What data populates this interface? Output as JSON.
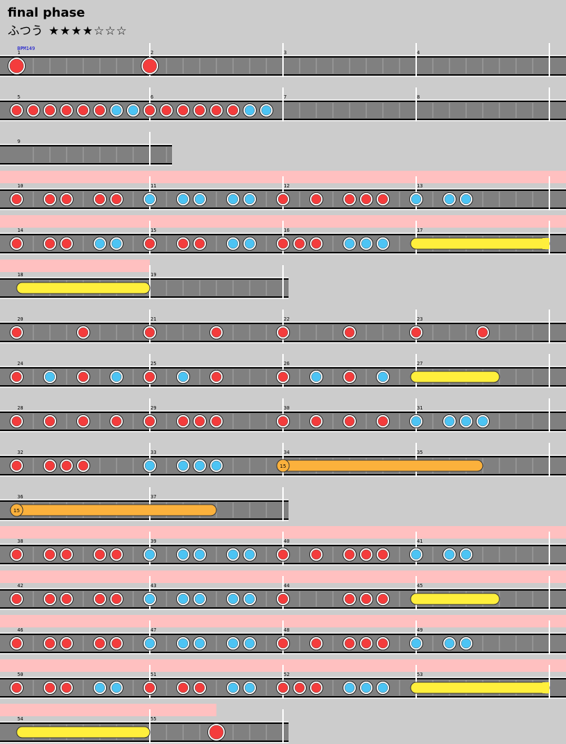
{
  "song": {
    "title": "final phase",
    "difficulty": "ふつう",
    "stars_display": "★★★★☆☆☆",
    "stars_filled": 4,
    "stars_total": 7,
    "bpm_label": "BPM149"
  },
  "colors": {
    "background": "#cccccc",
    "lane": "#808080",
    "gogo_band": "#ffc0c0",
    "don": "#f43c3c",
    "ka": "#4cc4f4",
    "roll": "#ffef3c",
    "balloon": "#fbb13c"
  },
  "rows": [
    {
      "measures": [
        1,
        2,
        3,
        4
      ],
      "gogo": false,
      "notes": [
        {
          "t": "DON",
          "b": 0
        },
        {
          "t": "DON",
          "b": 8
        }
      ]
    },
    {
      "measures": [
        5,
        6,
        7,
        8
      ],
      "gogo": false,
      "notes": [
        {
          "t": "d",
          "b": 0
        },
        {
          "t": "d",
          "b": 1
        },
        {
          "t": "d",
          "b": 2
        },
        {
          "t": "d",
          "b": 3
        },
        {
          "t": "d",
          "b": 4
        },
        {
          "t": "d",
          "b": 5
        },
        {
          "t": "k",
          "b": 6
        },
        {
          "t": "k",
          "b": 7
        },
        {
          "t": "d",
          "b": 8
        },
        {
          "t": "d",
          "b": 9
        },
        {
          "t": "d",
          "b": 10
        },
        {
          "t": "d",
          "b": 11
        },
        {
          "t": "d",
          "b": 12
        },
        {
          "t": "d",
          "b": 13
        },
        {
          "t": "k",
          "b": 14
        },
        {
          "t": "k",
          "b": 15
        }
      ]
    },
    {
      "measures": [
        9
      ],
      "gogo": false,
      "len": 10,
      "notes": []
    },
    {
      "measures": [
        10,
        11,
        12,
        13
      ],
      "gogo": true,
      "notes": [
        {
          "t": "d",
          "b": 0
        },
        {
          "t": "d",
          "b": 2
        },
        {
          "t": "d",
          "b": 3
        },
        {
          "t": "d",
          "b": 5
        },
        {
          "t": "d",
          "b": 6
        },
        {
          "t": "k",
          "b": 8
        },
        {
          "t": "k",
          "b": 10
        },
        {
          "t": "k",
          "b": 11
        },
        {
          "t": "k",
          "b": 13
        },
        {
          "t": "k",
          "b": 14
        },
        {
          "t": "d",
          "b": 16
        },
        {
          "t": "d",
          "b": 18
        },
        {
          "t": "d",
          "b": 20
        },
        {
          "t": "d",
          "b": 21
        },
        {
          "t": "d",
          "b": 22
        },
        {
          "t": "k",
          "b": 24
        },
        {
          "t": "k",
          "b": 26
        },
        {
          "t": "k",
          "b": 27
        }
      ]
    },
    {
      "measures": [
        14,
        15,
        16,
        17
      ],
      "gogo": true,
      "notes": [
        {
          "t": "d",
          "b": 0
        },
        {
          "t": "d",
          "b": 2
        },
        {
          "t": "d",
          "b": 3
        },
        {
          "t": "k",
          "b": 5
        },
        {
          "t": "k",
          "b": 6
        },
        {
          "t": "d",
          "b": 8
        },
        {
          "t": "d",
          "b": 10
        },
        {
          "t": "d",
          "b": 11
        },
        {
          "t": "k",
          "b": 13
        },
        {
          "t": "k",
          "b": 14
        },
        {
          "t": "d",
          "b": 16
        },
        {
          "t": "d",
          "b": 17
        },
        {
          "t": "d",
          "b": 18
        },
        {
          "t": "k",
          "b": 20
        },
        {
          "t": "k",
          "b": 21
        },
        {
          "t": "k",
          "b": 22
        }
      ],
      "rolls": [
        {
          "s": 24,
          "e": 32,
          "open": true
        }
      ]
    },
    {
      "measures": [
        18,
        19
      ],
      "gogo": true,
      "gogo_end": 8,
      "len": 17,
      "notes": [],
      "rolls": [
        {
          "s": 0,
          "e": 8,
          "cont": true
        }
      ]
    },
    {
      "measures": [
        20,
        21,
        22,
        23
      ],
      "gogo": false,
      "notes": [
        {
          "t": "d",
          "b": 0
        },
        {
          "t": "d",
          "b": 4
        },
        {
          "t": "d",
          "b": 8
        },
        {
          "t": "d",
          "b": 12
        },
        {
          "t": "d",
          "b": 16
        },
        {
          "t": "d",
          "b": 20
        },
        {
          "t": "d",
          "b": 24
        },
        {
          "t": "d",
          "b": 28
        }
      ]
    },
    {
      "measures": [
        24,
        25,
        26,
        27
      ],
      "gogo": false,
      "notes": [
        {
          "t": "d",
          "b": 0
        },
        {
          "t": "k",
          "b": 2
        },
        {
          "t": "d",
          "b": 4
        },
        {
          "t": "k",
          "b": 6
        },
        {
          "t": "d",
          "b": 8
        },
        {
          "t": "k",
          "b": 10
        },
        {
          "t": "d",
          "b": 12
        },
        {
          "t": "d",
          "b": 16
        },
        {
          "t": "k",
          "b": 18
        },
        {
          "t": "d",
          "b": 20
        },
        {
          "t": "k",
          "b": 22
        }
      ],
      "rolls": [
        {
          "s": 24,
          "e": 29
        }
      ]
    },
    {
      "measures": [
        28,
        29,
        30,
        31
      ],
      "gogo": false,
      "notes": [
        {
          "t": "d",
          "b": 0
        },
        {
          "t": "d",
          "b": 2
        },
        {
          "t": "d",
          "b": 4
        },
        {
          "t": "d",
          "b": 6
        },
        {
          "t": "d",
          "b": 8
        },
        {
          "t": "d",
          "b": 10
        },
        {
          "t": "d",
          "b": 11
        },
        {
          "t": "d",
          "b": 12
        },
        {
          "t": "d",
          "b": 16
        },
        {
          "t": "d",
          "b": 18
        },
        {
          "t": "d",
          "b": 20
        },
        {
          "t": "d",
          "b": 22
        },
        {
          "t": "k",
          "b": 24
        },
        {
          "t": "k",
          "b": 26
        },
        {
          "t": "k",
          "b": 27
        },
        {
          "t": "k",
          "b": 28
        }
      ]
    },
    {
      "measures": [
        32,
        33,
        34,
        35
      ],
      "gogo": false,
      "notes": [
        {
          "t": "d",
          "b": 0
        },
        {
          "t": "d",
          "b": 2
        },
        {
          "t": "d",
          "b": 3
        },
        {
          "t": "d",
          "b": 4
        },
        {
          "t": "k",
          "b": 8
        },
        {
          "t": "k",
          "b": 10
        },
        {
          "t": "k",
          "b": 11
        },
        {
          "t": "k",
          "b": 12
        }
      ],
      "balloons": [
        {
          "s": 16,
          "e": 28,
          "count": "15"
        }
      ]
    },
    {
      "measures": [
        36,
        37
      ],
      "gogo": false,
      "len": 17,
      "notes": [],
      "balloons": [
        {
          "s": 0,
          "e": 12,
          "count": "15"
        }
      ]
    },
    {
      "measures": [
        38,
        39,
        40,
        41
      ],
      "gogo": true,
      "notes": [
        {
          "t": "d",
          "b": 0
        },
        {
          "t": "d",
          "b": 2
        },
        {
          "t": "d",
          "b": 3
        },
        {
          "t": "d",
          "b": 5
        },
        {
          "t": "d",
          "b": 6
        },
        {
          "t": "k",
          "b": 8
        },
        {
          "t": "k",
          "b": 10
        },
        {
          "t": "k",
          "b": 11
        },
        {
          "t": "k",
          "b": 13
        },
        {
          "t": "k",
          "b": 14
        },
        {
          "t": "d",
          "b": 16
        },
        {
          "t": "d",
          "b": 18
        },
        {
          "t": "d",
          "b": 20
        },
        {
          "t": "d",
          "b": 21
        },
        {
          "t": "d",
          "b": 22
        },
        {
          "t": "k",
          "b": 24
        },
        {
          "t": "k",
          "b": 26
        },
        {
          "t": "k",
          "b": 27
        }
      ]
    },
    {
      "measures": [
        42,
        43,
        44,
        45
      ],
      "gogo": true,
      "notes": [
        {
          "t": "d",
          "b": 0
        },
        {
          "t": "d",
          "b": 2
        },
        {
          "t": "d",
          "b": 3
        },
        {
          "t": "d",
          "b": 5
        },
        {
          "t": "d",
          "b": 6
        },
        {
          "t": "k",
          "b": 8
        },
        {
          "t": "k",
          "b": 10
        },
        {
          "t": "k",
          "b": 11
        },
        {
          "t": "k",
          "b": 13
        },
        {
          "t": "k",
          "b": 14
        },
        {
          "t": "d",
          "b": 16
        },
        {
          "t": "d",
          "b": 20
        },
        {
          "t": "d",
          "b": 21
        },
        {
          "t": "d",
          "b": 22
        }
      ],
      "rolls": [
        {
          "s": 24,
          "e": 29
        }
      ]
    },
    {
      "measures": [
        46,
        47,
        48,
        49
      ],
      "gogo": true,
      "notes": [
        {
          "t": "d",
          "b": 0
        },
        {
          "t": "d",
          "b": 2
        },
        {
          "t": "d",
          "b": 3
        },
        {
          "t": "d",
          "b": 5
        },
        {
          "t": "d",
          "b": 6
        },
        {
          "t": "k",
          "b": 8
        },
        {
          "t": "k",
          "b": 10
        },
        {
          "t": "k",
          "b": 11
        },
        {
          "t": "k",
          "b": 13
        },
        {
          "t": "k",
          "b": 14
        },
        {
          "t": "d",
          "b": 16
        },
        {
          "t": "d",
          "b": 18
        },
        {
          "t": "d",
          "b": 20
        },
        {
          "t": "d",
          "b": 21
        },
        {
          "t": "d",
          "b": 22
        },
        {
          "t": "k",
          "b": 24
        },
        {
          "t": "k",
          "b": 26
        },
        {
          "t": "k",
          "b": 27
        }
      ]
    },
    {
      "measures": [
        50,
        51,
        52,
        53
      ],
      "gogo": true,
      "notes": [
        {
          "t": "d",
          "b": 0
        },
        {
          "t": "d",
          "b": 2
        },
        {
          "t": "d",
          "b": 3
        },
        {
          "t": "k",
          "b": 5
        },
        {
          "t": "k",
          "b": 6
        },
        {
          "t": "d",
          "b": 8
        },
        {
          "t": "d",
          "b": 10
        },
        {
          "t": "d",
          "b": 11
        },
        {
          "t": "k",
          "b": 13
        },
        {
          "t": "k",
          "b": 14
        },
        {
          "t": "d",
          "b": 16
        },
        {
          "t": "d",
          "b": 17
        },
        {
          "t": "d",
          "b": 18
        },
        {
          "t": "k",
          "b": 20
        },
        {
          "t": "k",
          "b": 21
        },
        {
          "t": "k",
          "b": 22
        }
      ],
      "rolls": [
        {
          "s": 24,
          "e": 32,
          "open": true
        }
      ]
    },
    {
      "measures": [
        54,
        55
      ],
      "gogo": true,
      "gogo_end": 12,
      "len": 17,
      "notes": [
        {
          "t": "DON",
          "b": 12
        }
      ],
      "rolls": [
        {
          "s": 0,
          "e": 8,
          "cont": true
        }
      ]
    }
  ]
}
